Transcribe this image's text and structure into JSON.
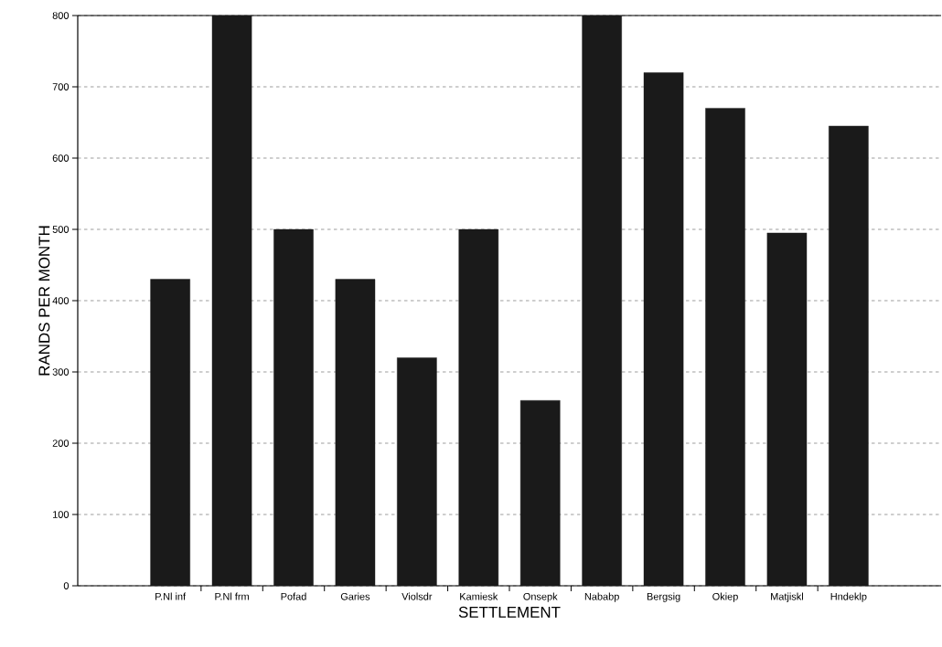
{
  "chart_data": {
    "type": "bar",
    "xlabel": "SETTLEMENT",
    "ylabel": "RANDS PER MONTH",
    "categories": [
      null,
      "P.Nl inf",
      "P.Nl frm",
      "Pofad",
      "Garies",
      "Violsdr",
      "Kamiesk",
      "Onsepk",
      "Nababp",
      "Bergsig",
      "Okiep",
      "Matjiskl",
      "Hndeklp",
      null
    ],
    "values": [
      null,
      430,
      800,
      500,
      430,
      320,
      500,
      260,
      800,
      720,
      670,
      495,
      645,
      null
    ],
    "color": "#1a1a1a",
    "ylim": [
      0,
      800
    ],
    "yticks": [
      0,
      100,
      200,
      300,
      400,
      500,
      600,
      700,
      800
    ],
    "grid": "y"
  }
}
